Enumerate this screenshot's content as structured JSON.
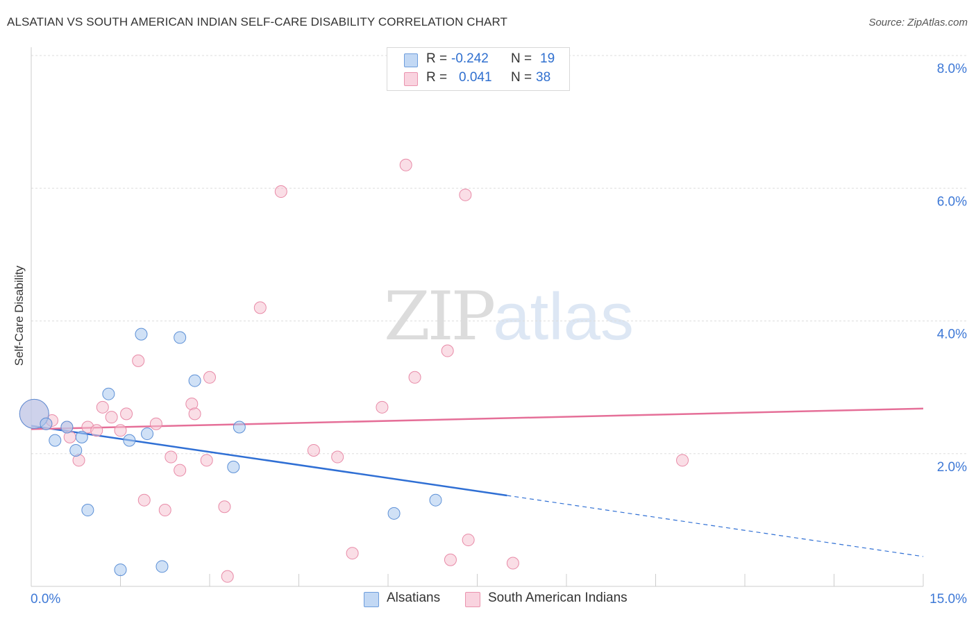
{
  "title": "ALSATIAN VS SOUTH AMERICAN INDIAN SELF-CARE DISABILITY CORRELATION CHART",
  "source": "Source: ZipAtlas.com",
  "watermark": {
    "zip": "ZIP",
    "atlas": "atlas"
  },
  "legend": {
    "rows": [
      {
        "r_label": "R =",
        "r_value": "-0.242",
        "n_label": "N =",
        "n_value": "19"
      },
      {
        "r_label": "R =",
        "r_value": "0.041",
        "n_label": "N =",
        "n_value": "38"
      }
    ]
  },
  "bottom_legend": [
    "Alsatians",
    "South American Indians"
  ],
  "chart_data": {
    "type": "scatter",
    "title": "ALSATIAN VS SOUTH AMERICAN INDIAN SELF-CARE DISABILITY CORRELATION CHART",
    "xlabel": "",
    "ylabel": "Self-Care Disability",
    "xlim": [
      0,
      15
    ],
    "ylim": [
      0,
      8.0
    ],
    "x_ticks": [
      "0.0%",
      "15.0%"
    ],
    "y_ticks": [
      {
        "value": 2.0,
        "label": "2.0%"
      },
      {
        "value": 4.0,
        "label": "4.0%"
      },
      {
        "value": 6.0,
        "label": "6.0%"
      },
      {
        "value": 8.0,
        "label": "8.0%"
      }
    ],
    "grid": true,
    "legend_position": "top-center",
    "series": [
      {
        "name": "Alsatians",
        "color": "#a9c8ee",
        "stroke": "#5b8fd6",
        "line_color": "#2f6fd4",
        "points": [
          {
            "x": 0.05,
            "y": 2.6,
            "big": true
          },
          {
            "x": 0.25,
            "y": 2.45
          },
          {
            "x": 0.4,
            "y": 2.2
          },
          {
            "x": 0.6,
            "y": 2.4
          },
          {
            "x": 0.75,
            "y": 2.05
          },
          {
            "x": 0.85,
            "y": 2.25
          },
          {
            "x": 0.95,
            "y": 1.15
          },
          {
            "x": 1.3,
            "y": 2.9
          },
          {
            "x": 1.5,
            "y": 0.25
          },
          {
            "x": 1.65,
            "y": 2.2
          },
          {
            "x": 1.85,
            "y": 3.8
          },
          {
            "x": 1.95,
            "y": 2.3
          },
          {
            "x": 2.2,
            "y": 0.3
          },
          {
            "x": 2.5,
            "y": 3.75
          },
          {
            "x": 2.75,
            "y": 3.1
          },
          {
            "x": 3.4,
            "y": 1.8
          },
          {
            "x": 3.5,
            "y": 2.4
          },
          {
            "x": 6.1,
            "y": 1.1
          },
          {
            "x": 6.8,
            "y": 1.3
          }
        ],
        "trend": {
          "x0": 0,
          "y0": 2.42,
          "x1": 8.0,
          "y1": 1.37,
          "dash_to_x": 15,
          "dash_to_y": 0.45
        }
      },
      {
        "name": "South American Indians",
        "color": "#f6c3d2",
        "stroke": "#e88aa7",
        "line_color": "#e56f98",
        "points": [
          {
            "x": 0.05,
            "y": 2.6,
            "big": true
          },
          {
            "x": 0.25,
            "y": 2.45
          },
          {
            "x": 0.35,
            "y": 2.5
          },
          {
            "x": 0.6,
            "y": 2.4
          },
          {
            "x": 0.65,
            "y": 2.25
          },
          {
            "x": 0.8,
            "y": 1.9
          },
          {
            "x": 0.95,
            "y": 2.4
          },
          {
            "x": 1.1,
            "y": 2.35
          },
          {
            "x": 1.2,
            "y": 2.7
          },
          {
            "x": 1.35,
            "y": 2.55
          },
          {
            "x": 1.5,
            "y": 2.35
          },
          {
            "x": 1.6,
            "y": 2.6
          },
          {
            "x": 1.8,
            "y": 3.4
          },
          {
            "x": 1.9,
            "y": 1.3
          },
          {
            "x": 2.1,
            "y": 2.45
          },
          {
            "x": 2.25,
            "y": 1.15
          },
          {
            "x": 2.35,
            "y": 1.95
          },
          {
            "x": 2.5,
            "y": 1.75
          },
          {
            "x": 2.7,
            "y": 2.75
          },
          {
            "x": 2.75,
            "y": 2.6
          },
          {
            "x": 2.95,
            "y": 1.9
          },
          {
            "x": 3.0,
            "y": 3.15
          },
          {
            "x": 3.25,
            "y": 1.2
          },
          {
            "x": 3.3,
            "y": 0.15
          },
          {
            "x": 3.85,
            "y": 4.2
          },
          {
            "x": 4.2,
            "y": 5.95
          },
          {
            "x": 4.75,
            "y": 2.05
          },
          {
            "x": 5.15,
            "y": 1.95
          },
          {
            "x": 5.4,
            "y": 0.5
          },
          {
            "x": 5.9,
            "y": 2.7
          },
          {
            "x": 6.3,
            "y": 6.35
          },
          {
            "x": 6.45,
            "y": 3.15
          },
          {
            "x": 7.0,
            "y": 3.55
          },
          {
            "x": 7.05,
            "y": 0.4
          },
          {
            "x": 7.3,
            "y": 5.9
          },
          {
            "x": 7.35,
            "y": 0.7
          },
          {
            "x": 8.1,
            "y": 0.35
          },
          {
            "x": 10.95,
            "y": 1.9
          }
        ],
        "trend": {
          "x0": 0,
          "y0": 2.37,
          "x1": 15,
          "y1": 2.68
        }
      }
    ]
  }
}
